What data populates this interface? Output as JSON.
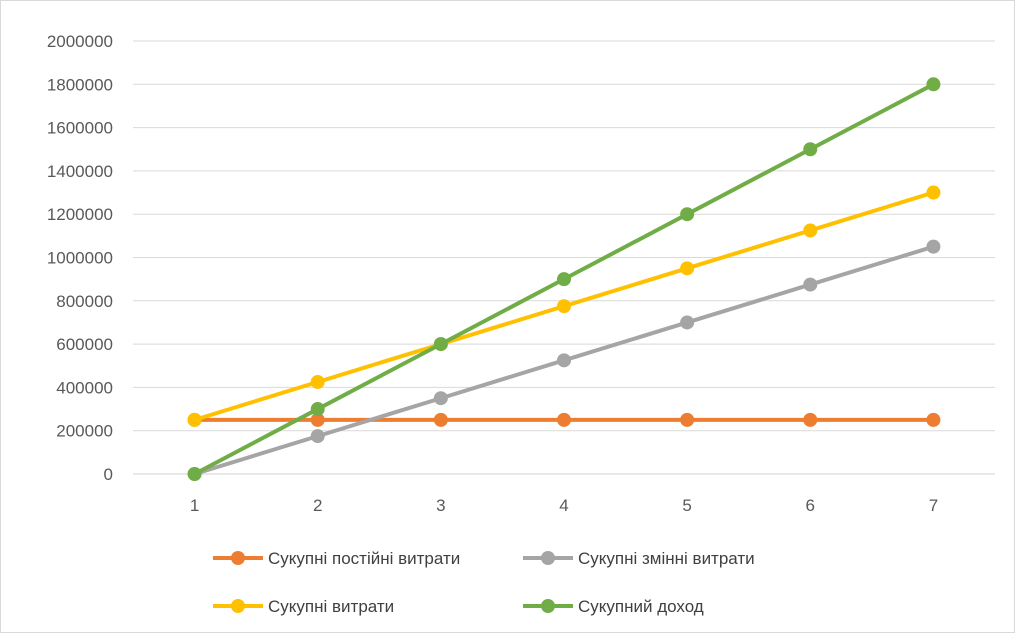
{
  "chart_data": {
    "type": "line",
    "title": "",
    "xlabel": "",
    "ylabel": "",
    "x": [
      "1",
      "2",
      "3",
      "4",
      "5",
      "6",
      "7"
    ],
    "ylim": [
      0,
      2000000
    ],
    "yticks": [
      "0",
      "200000",
      "400000",
      "600000",
      "800000",
      "1000000",
      "1200000",
      "1400000",
      "1600000",
      "1800000",
      "2000000"
    ],
    "grid": true,
    "legend_position": "bottom",
    "series": [
      {
        "name": "Сукупні постійні витрати",
        "color": "#ED7D31",
        "values": [
          250000,
          250000,
          250000,
          250000,
          250000,
          250000,
          250000
        ]
      },
      {
        "name": "Сукупні змінні витрати",
        "color": "#A5A5A5",
        "values": [
          0,
          175000,
          350000,
          525000,
          700000,
          875000,
          1050000
        ]
      },
      {
        "name": "Сукупні витрати",
        "color": "#FFC000",
        "values": [
          250000,
          425000,
          600000,
          775000,
          950000,
          1125000,
          1300000
        ]
      },
      {
        "name": "Сукупний доход",
        "color": "#70AD47",
        "values": [
          0,
          300000,
          600000,
          900000,
          1200000,
          1500000,
          1800000
        ]
      }
    ]
  }
}
